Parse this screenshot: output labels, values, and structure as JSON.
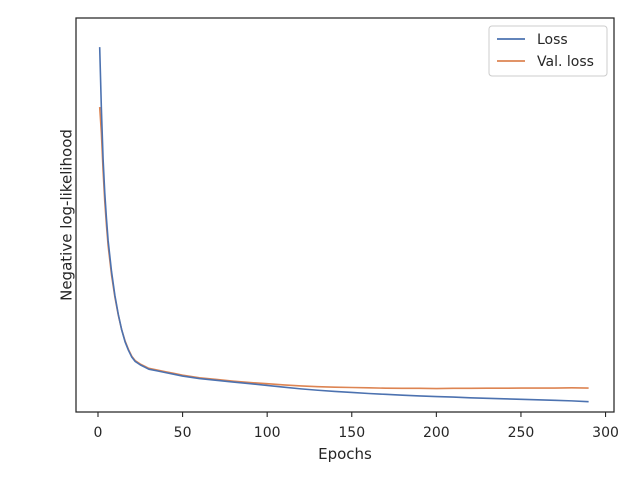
{
  "chart_data": {
    "type": "line",
    "title": "",
    "xlabel": "Epochs",
    "ylabel": "Negative log-likelihood",
    "xlim": [
      -13,
      305
    ],
    "ylim": [
      0.07,
      2.37
    ],
    "x_ticks": [
      0,
      50,
      100,
      150,
      200,
      250,
      300
    ],
    "y_ticks_shown": false,
    "grid": false,
    "legend_position": "top-right",
    "series": [
      {
        "name": "Loss",
        "color": "#4c72b0",
        "x": [
          1,
          2,
          3,
          4,
          5,
          6,
          8,
          10,
          12,
          14,
          16,
          18,
          20,
          22,
          25,
          28,
          30,
          35,
          40,
          45,
          50,
          60,
          70,
          80,
          90,
          100,
          110,
          120,
          130,
          140,
          150,
          160,
          170,
          180,
          190,
          200,
          210,
          220,
          230,
          240,
          250,
          260,
          270,
          280,
          290
        ],
        "y": [
          2.2,
          1.84,
          1.55,
          1.35,
          1.2,
          1.07,
          0.89,
          0.75,
          0.64,
          0.55,
          0.48,
          0.43,
          0.39,
          0.365,
          0.345,
          0.33,
          0.32,
          0.31,
          0.3,
          0.29,
          0.28,
          0.265,
          0.255,
          0.245,
          0.235,
          0.225,
          0.215,
          0.205,
          0.197,
          0.19,
          0.184,
          0.178,
          0.173,
          0.168,
          0.164,
          0.16,
          0.157,
          0.153,
          0.15,
          0.147,
          0.144,
          0.141,
          0.138,
          0.135,
          0.13
        ]
      },
      {
        "name": "Val. loss",
        "color": "#dd8452",
        "x": [
          1,
          2,
          3,
          4,
          5,
          6,
          8,
          10,
          12,
          14,
          16,
          18,
          20,
          22,
          25,
          28,
          30,
          35,
          40,
          45,
          50,
          60,
          70,
          80,
          90,
          100,
          110,
          120,
          130,
          140,
          150,
          160,
          170,
          180,
          190,
          200,
          210,
          220,
          230,
          240,
          250,
          260,
          270,
          280,
          290
        ],
        "y": [
          1.85,
          1.7,
          1.48,
          1.3,
          1.16,
          1.04,
          0.87,
          0.74,
          0.635,
          0.55,
          0.485,
          0.435,
          0.395,
          0.37,
          0.35,
          0.335,
          0.325,
          0.315,
          0.305,
          0.295,
          0.285,
          0.27,
          0.26,
          0.25,
          0.242,
          0.235,
          0.228,
          0.222,
          0.218,
          0.215,
          0.213,
          0.211,
          0.209,
          0.208,
          0.208,
          0.207,
          0.208,
          0.208,
          0.209,
          0.209,
          0.21,
          0.21,
          0.21,
          0.211,
          0.21
        ]
      }
    ]
  }
}
